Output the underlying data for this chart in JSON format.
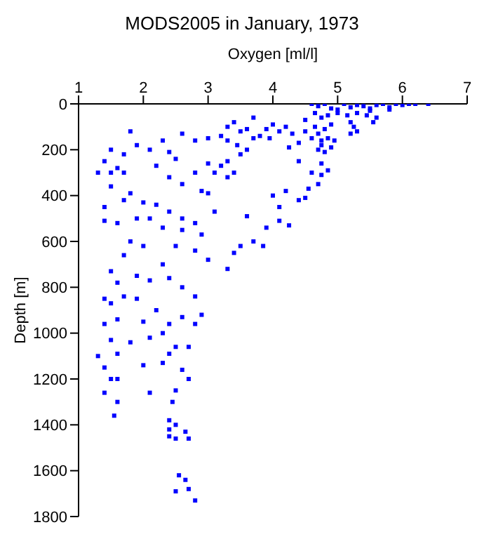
{
  "chart_data": {
    "type": "scatter",
    "title": "MODS2005 in January, 1973",
    "xlabel": "Oxygen [ml/l]",
    "ylabel": "Depth [m]",
    "x": [
      4.6,
      4.7,
      4.8,
      4.9,
      5.0,
      5.1,
      5.2,
      5.3,
      5.4,
      5.5,
      5.6,
      5.7,
      5.8,
      5.9,
      6.0,
      6.1,
      6.2,
      6.4,
      5.5,
      5.8,
      4.65,
      4.75,
      4.85,
      5.0,
      5.15,
      5.3,
      5.45,
      5.6,
      5.55,
      5.2,
      5.25,
      5.3,
      5.2,
      4.65,
      4.7,
      4.8,
      4.9,
      4.6,
      4.75,
      4.85,
      4.95,
      4.7,
      4.8,
      4.9,
      4.75,
      4.5,
      4.3,
      4.2,
      4.5,
      4.0,
      4.1,
      3.9,
      3.8,
      3.95,
      4.4,
      4.25,
      4.4,
      4.75,
      4.6,
      4.75,
      4.85,
      4.7,
      4.55,
      4.2,
      4.4,
      4.5,
      4.1,
      4.1,
      4.25,
      3.9,
      3.85,
      3.7,
      3.5,
      3.6,
      4.0,
      3.3,
      3.4,
      3.5,
      3.2,
      3.3,
      3.45,
      3.6,
      3.5,
      3.3,
      3.2,
      3.4,
      3.1,
      3.3,
      3.6,
      3.7,
      3.7,
      3.0,
      3.0,
      2.8,
      2.8,
      2.9,
      3.0,
      2.6,
      2.4,
      2.3,
      2.1,
      1.9,
      1.8,
      1.7,
      1.5,
      1.4,
      1.3,
      1.5,
      1.6,
      1.7,
      2.2,
      2.5,
      2.6,
      2.4,
      1.5,
      1.8,
      2.0,
      2.2,
      1.7,
      1.4,
      1.4,
      1.6,
      1.9,
      2.1,
      2.4,
      2.6,
      2.8,
      2.6,
      2.9,
      2.3,
      3.1,
      3.0,
      3.3,
      3.4,
      2.8,
      2.5,
      2.3,
      2.0,
      1.8,
      1.7,
      1.5,
      1.6,
      1.9,
      2.1,
      2.4,
      2.6,
      2.8,
      1.4,
      1.5,
      1.7,
      1.9,
      2.2,
      2.6,
      2.9,
      2.8,
      2.4,
      2.0,
      1.6,
      1.4,
      1.5,
      1.8,
      2.1,
      2.3,
      2.5,
      2.7,
      1.3,
      1.6,
      2.0,
      2.3,
      2.4,
      2.6,
      2.7,
      1.4,
      1.5,
      1.6,
      1.4,
      1.6,
      2.1,
      2.5,
      2.45,
      1.55,
      2.4,
      2.5,
      2.4,
      2.4,
      2.5,
      2.65,
      2.7,
      2.55,
      2.65,
      2.7,
      2.5,
      2.8
    ],
    "values": [
      0,
      10,
      0,
      20,
      25,
      0,
      15,
      5,
      10,
      30,
      5,
      0,
      25,
      0,
      5,
      0,
      0,
      0,
      20,
      15,
      40,
      60,
      50,
      40,
      50,
      40,
      50,
      60,
      80,
      80,
      100,
      120,
      130,
      100,
      130,
      110,
      90,
      150,
      160,
      150,
      160,
      200,
      210,
      190,
      180,
      120,
      130,
      100,
      70,
      90,
      120,
      110,
      140,
      150,
      170,
      190,
      250,
      260,
      300,
      310,
      290,
      350,
      370,
      380,
      420,
      410,
      450,
      510,
      530,
      540,
      620,
      600,
      620,
      490,
      400,
      100,
      80,
      120,
      140,
      160,
      180,
      200,
      220,
      250,
      270,
      300,
      300,
      320,
      110,
      150,
      60,
      150,
      260,
      160,
      300,
      380,
      390,
      130,
      210,
      160,
      200,
      180,
      120,
      220,
      200,
      250,
      300,
      300,
      280,
      300,
      270,
      240,
      350,
      320,
      360,
      390,
      430,
      440,
      420,
      450,
      510,
      520,
      500,
      500,
      470,
      500,
      520,
      550,
      570,
      540,
      470,
      680,
      720,
      650,
      640,
      620,
      700,
      620,
      600,
      660,
      730,
      780,
      750,
      770,
      760,
      800,
      840,
      850,
      870,
      840,
      850,
      900,
      930,
      920,
      960,
      960,
      950,
      940,
      960,
      1030,
      1040,
      1020,
      1000,
      1060,
      1060,
      1100,
      1090,
      1140,
      1130,
      1090,
      1160,
      1200,
      1150,
      1200,
      1200,
      1260,
      1300,
      1260,
      1250,
      1300,
      1360,
      1380,
      1400,
      1420,
      1450,
      1460,
      1430,
      1460,
      1620,
      1640,
      1680,
      1690,
      1730
    ],
    "color": "#0000ff",
    "marker": "square",
    "grid": false,
    "xlim": [
      1,
      7
    ],
    "xticks": [
      1,
      2,
      3,
      4,
      5,
      6,
      7
    ],
    "ylim": [
      1800,
      0
    ],
    "yticks": [
      0,
      200,
      400,
      600,
      800,
      1000,
      1200,
      1400,
      1600,
      1800
    ]
  }
}
